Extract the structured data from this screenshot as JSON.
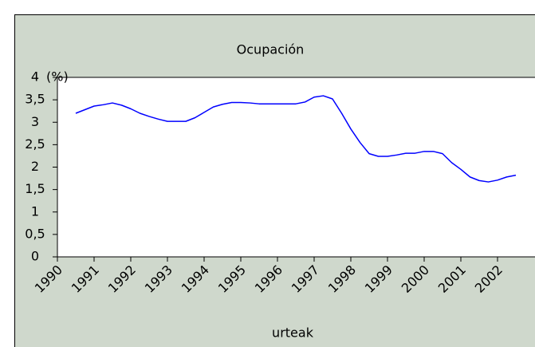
{
  "chart_data": {
    "type": "line",
    "title": "Ocupación",
    "y_label": "(%)",
    "x_label": "urteak",
    "x": [
      1990.5,
      1990.75,
      1991,
      1991.25,
      1991.5,
      1991.75,
      1992,
      1992.25,
      1992.5,
      1992.75,
      1993,
      1993.25,
      1993.5,
      1993.75,
      1994,
      1994.25,
      1994.5,
      1994.75,
      1995,
      1995.25,
      1995.5,
      1995.75,
      1996,
      1996.25,
      1996.5,
      1996.75,
      1997,
      1997.25,
      1997.5,
      1997.75,
      1998,
      1998.25,
      1998.5,
      1998.75,
      1999,
      1999.25,
      1999.5,
      1999.75,
      2000,
      2000.25,
      2000.5,
      2000.75,
      2001,
      2001.25,
      2001.5,
      2001.75,
      2002,
      2002.25,
      2002.5
    ],
    "series": [
      {
        "color": "#0000ff",
        "values": [
          3.2,
          3.28,
          3.36,
          3.39,
          3.43,
          3.38,
          3.3,
          3.2,
          3.13,
          3.07,
          3.02,
          3.02,
          3.02,
          3.1,
          3.22,
          3.34,
          3.4,
          3.44,
          3.44,
          3.43,
          3.41,
          3.41,
          3.41,
          3.41,
          3.41,
          3.45,
          3.56,
          3.59,
          3.52,
          3.2,
          2.85,
          2.55,
          2.3,
          2.24,
          2.24,
          2.27,
          2.31,
          2.31,
          2.35,
          2.35,
          2.3,
          2.1,
          1.95,
          1.78,
          1.7,
          1.67,
          1.71,
          1.78,
          1.82
        ]
      }
    ],
    "xlim": [
      1990,
      2003
    ],
    "xticks": [
      1990,
      1991,
      1992,
      1993,
      1994,
      1995,
      1996,
      1997,
      1998,
      1999,
      2000,
      2001,
      2002
    ],
    "ylim": [
      0,
      4
    ],
    "yticks": [
      0,
      {
        "value": 0.5,
        "label": "0,5"
      },
      1,
      {
        "value": 1.5,
        "label": "1,5"
      },
      2,
      {
        "value": 2.5,
        "label": "2,5"
      },
      3,
      {
        "value": 3.5,
        "label": "3,5"
      },
      4
    ]
  }
}
